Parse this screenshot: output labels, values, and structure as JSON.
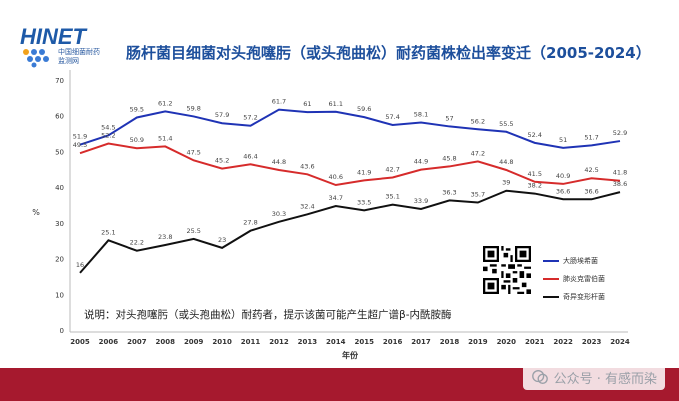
{
  "brand": {
    "name": "HINET",
    "subtitle_line1": "中国细菌耐药",
    "subtitle_line2": "监测网"
  },
  "title": "肠杆菌目细菌对头孢噻肟（或头孢曲松）耐药菌株检出率变迁（2005-2024）",
  "note": "说明：对头孢噻肟（或头孢曲松）耐药者，提示该菌可能产生超广谱β-内酰胺酶",
  "watermark": "公众号 · 有感而染",
  "colors": {
    "blue": "#1f33b5",
    "red": "#d62b2b",
    "black": "#111111",
    "band": "#a6192e"
  },
  "chart_data": {
    "type": "line",
    "title": "肠杆菌目细菌对头孢噻肟（或头孢曲松）耐药菌株检出率变迁（2005-2024）",
    "xlabel": "年份",
    "ylabel": "%",
    "ylim": [
      0,
      70
    ],
    "yticks": [
      0,
      10,
      20,
      30,
      40,
      50,
      60,
      70
    ],
    "grid": false,
    "legend_position": "bottom-right",
    "categories": [
      "2005",
      "2006",
      "2007",
      "2008",
      "2009",
      "2010",
      "2011",
      "2012",
      "2013",
      "2014",
      "2015",
      "2016",
      "2017",
      "2018",
      "2019",
      "2020",
      "2021",
      "2022",
      "2023",
      "2024"
    ],
    "series": [
      {
        "name": "大肠埃希菌",
        "color": "#1f33b5",
        "values": [
          51.9,
          54.5,
          59.5,
          61.2,
          59.8,
          57.9,
          57.2,
          61.7,
          61,
          61.1,
          59.6,
          57.4,
          58.1,
          57,
          56.2,
          55.5,
          52.4,
          51,
          51.7,
          52.9
        ]
      },
      {
        "name": "肺炎克雷伯菌",
        "color": "#d62b2b",
        "values": [
          49.5,
          52.2,
          50.9,
          51.4,
          47.5,
          45.2,
          46.4,
          44.8,
          43.6,
          40.6,
          41.9,
          42.7,
          44.9,
          45.8,
          47.2,
          44.8,
          41.5,
          40.9,
          42.5,
          41.8
        ]
      },
      {
        "name": "奇异变形杆菌",
        "color": "#111111",
        "values": [
          16,
          25.1,
          22.2,
          23.8,
          25.5,
          23,
          27.8,
          30.3,
          32.4,
          34.7,
          33.5,
          35.1,
          33.9,
          36.3,
          35.7,
          39,
          38.2,
          36.6,
          36.6,
          38.6
        ]
      }
    ],
    "data_labels": [
      [
        "51.9",
        "54.5",
        "59.5",
        "61.2",
        "59.8",
        "57.9",
        "57.2",
        "61.7",
        "61",
        "61.1",
        "59.6",
        "57.4",
        "58.1",
        "57",
        "56.2",
        "55.5",
        "52.4",
        "51",
        "51.7",
        "52.9"
      ],
      [
        "49.5",
        "52.2",
        "50.9",
        "51.4",
        "47.5",
        "45.2",
        "46.4",
        "44.8",
        "43.6",
        "40.6",
        "41.9",
        "42.7",
        "44.9",
        "45.8",
        "47.2",
        "44.8",
        "41.5",
        "40.9",
        "42.5",
        "41.8"
      ],
      [
        "16",
        "25.1",
        "22.2",
        "23.8",
        "25.5",
        "23",
        "27.8",
        "30.3",
        "32.4",
        "34.7",
        "33.5",
        "35.1",
        "33.9",
        "36.3",
        "35.7",
        "39",
        "38.2",
        "36.6",
        "36.6",
        "38.6"
      ]
    ]
  }
}
